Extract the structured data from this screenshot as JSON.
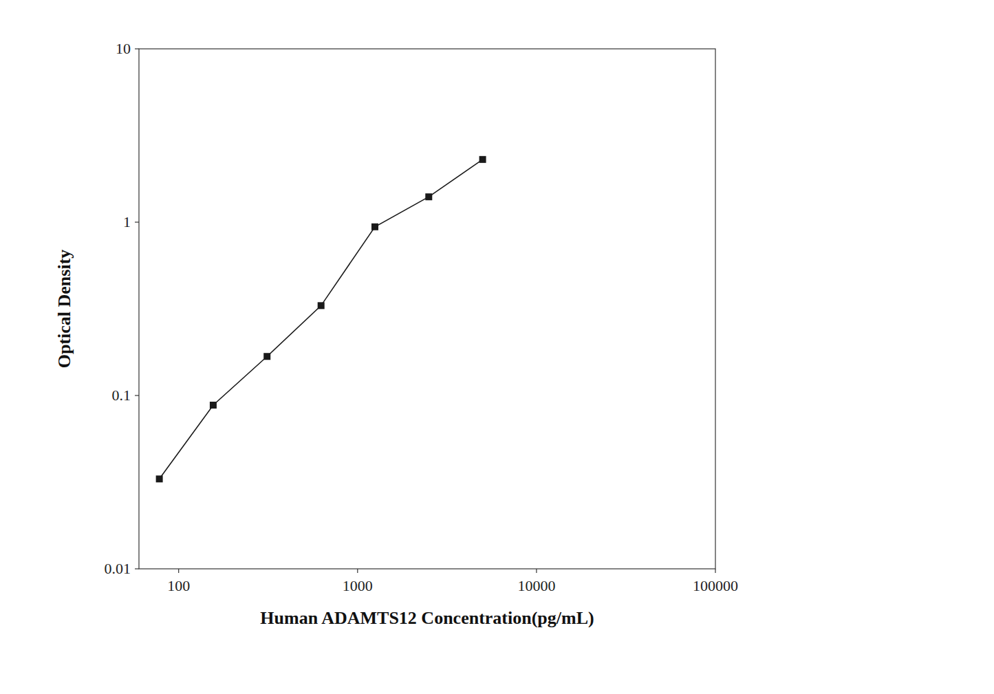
{
  "chart_data": {
    "type": "line",
    "x": [
      78,
      156,
      312,
      625,
      1250,
      2500,
      5000
    ],
    "values": [
      0.033,
      0.088,
      0.168,
      0.33,
      0.94,
      1.4,
      2.3
    ],
    "xlabel": "Human ADAMTS12 Concentration(pg/mL)",
    "ylabel": "Optical Density",
    "xlim": [
      60,
      100000
    ],
    "ylim": [
      0.01,
      10
    ],
    "xticks": [
      100,
      1000,
      10000,
      100000
    ],
    "yticks": [
      0.01,
      0.1,
      1,
      10
    ],
    "log": true,
    "grid": false,
    "color": "#1a1a1a",
    "marker": "square"
  }
}
